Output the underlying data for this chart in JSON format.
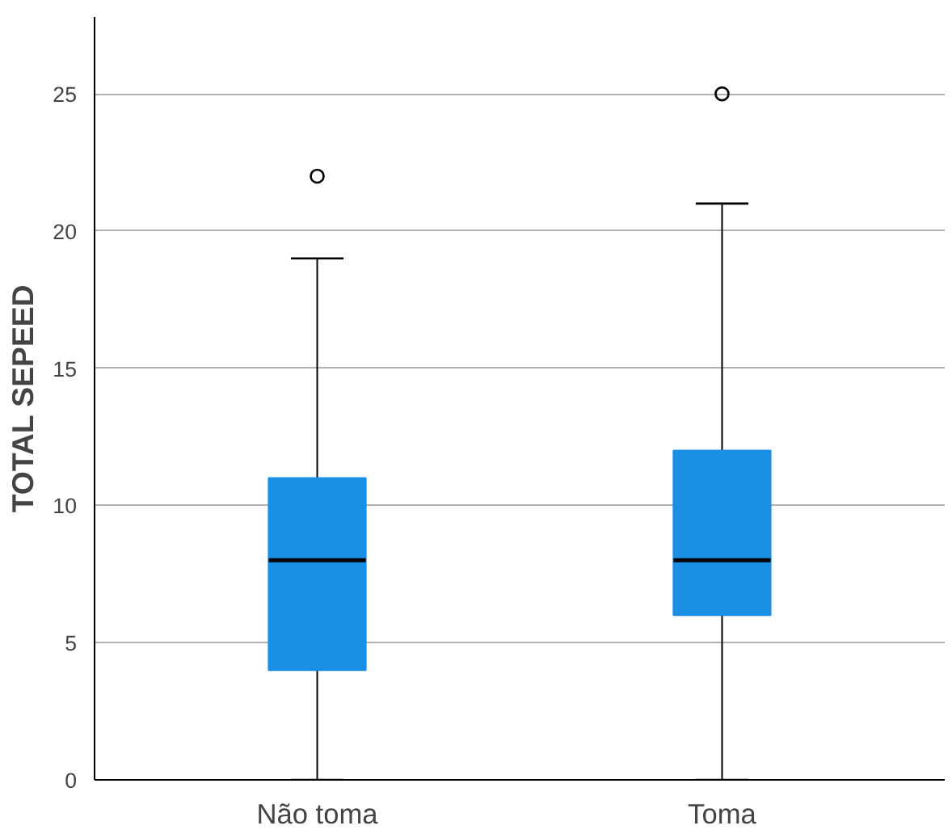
{
  "chart_data": {
    "type": "box",
    "ylabel": "TOTAL SEPEED",
    "categories": [
      "Não toma",
      "Toma"
    ],
    "boxes": [
      {
        "low": 0,
        "q1": 4,
        "median": 8,
        "q3": 11,
        "high": 19,
        "outliers": [
          22
        ]
      },
      {
        "low": 0,
        "q1": 6,
        "median": 8,
        "q3": 12,
        "high": 21,
        "outliers": [
          25
        ]
      }
    ],
    "color": "#1a8fe3",
    "ylim": [
      0,
      27.8
    ],
    "yticks": [
      0,
      5,
      10,
      15,
      20,
      25
    ],
    "grid": "y"
  }
}
